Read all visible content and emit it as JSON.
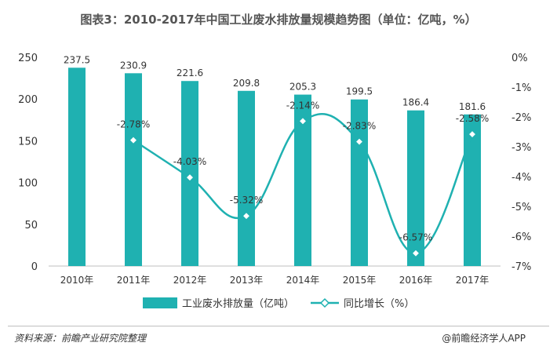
{
  "title": "图表3：2010-2017年中国工业废水排放量规模趋势图（单位：亿吨，%）",
  "source": "资料来源：前瞻产业研究院整理",
  "brand": "@前瞻经济学人APP",
  "colors": {
    "bar": "#1fb1b1",
    "line": "#1fb1b1",
    "text": "#333333",
    "axis": "#bfbfbf"
  },
  "chart_data": {
    "type": "bar",
    "categories": [
      "2010年",
      "2011年",
      "2012年",
      "2013年",
      "2014年",
      "2015年",
      "2016年",
      "2017年"
    ],
    "series": [
      {
        "name": "工业废水排放量（亿吨）",
        "type": "bar",
        "axis": "left",
        "values": [
          237.5,
          230.9,
          221.6,
          209.8,
          205.3,
          199.5,
          186.4,
          181.6
        ],
        "labels": [
          "237.5",
          "230.9",
          "221.6",
          "209.8",
          "205.3",
          "199.5",
          "186.4",
          "181.6"
        ]
      },
      {
        "name": "同比增长（%）",
        "type": "line",
        "axis": "right",
        "values": [
          null,
          -2.78,
          -4.03,
          -5.32,
          -2.14,
          -2.83,
          -6.57,
          -2.58
        ],
        "labels": [
          "",
          "-2.78%",
          "-4.03%",
          "-5.32%",
          "-2.14%",
          "-2.83%",
          "-6.57%",
          "-2.58%"
        ]
      }
    ],
    "ylim_left": [
      0,
      250
    ],
    "yticks_left": [
      "0",
      "50",
      "100",
      "150",
      "200",
      "250"
    ],
    "ylim_right": [
      -7,
      0
    ],
    "yticks_right": [
      "0%",
      "-1%",
      "-2%",
      "-3%",
      "-4%",
      "-5%",
      "-6%",
      "-7%"
    ],
    "grid": false,
    "legend_position": "bottom"
  }
}
